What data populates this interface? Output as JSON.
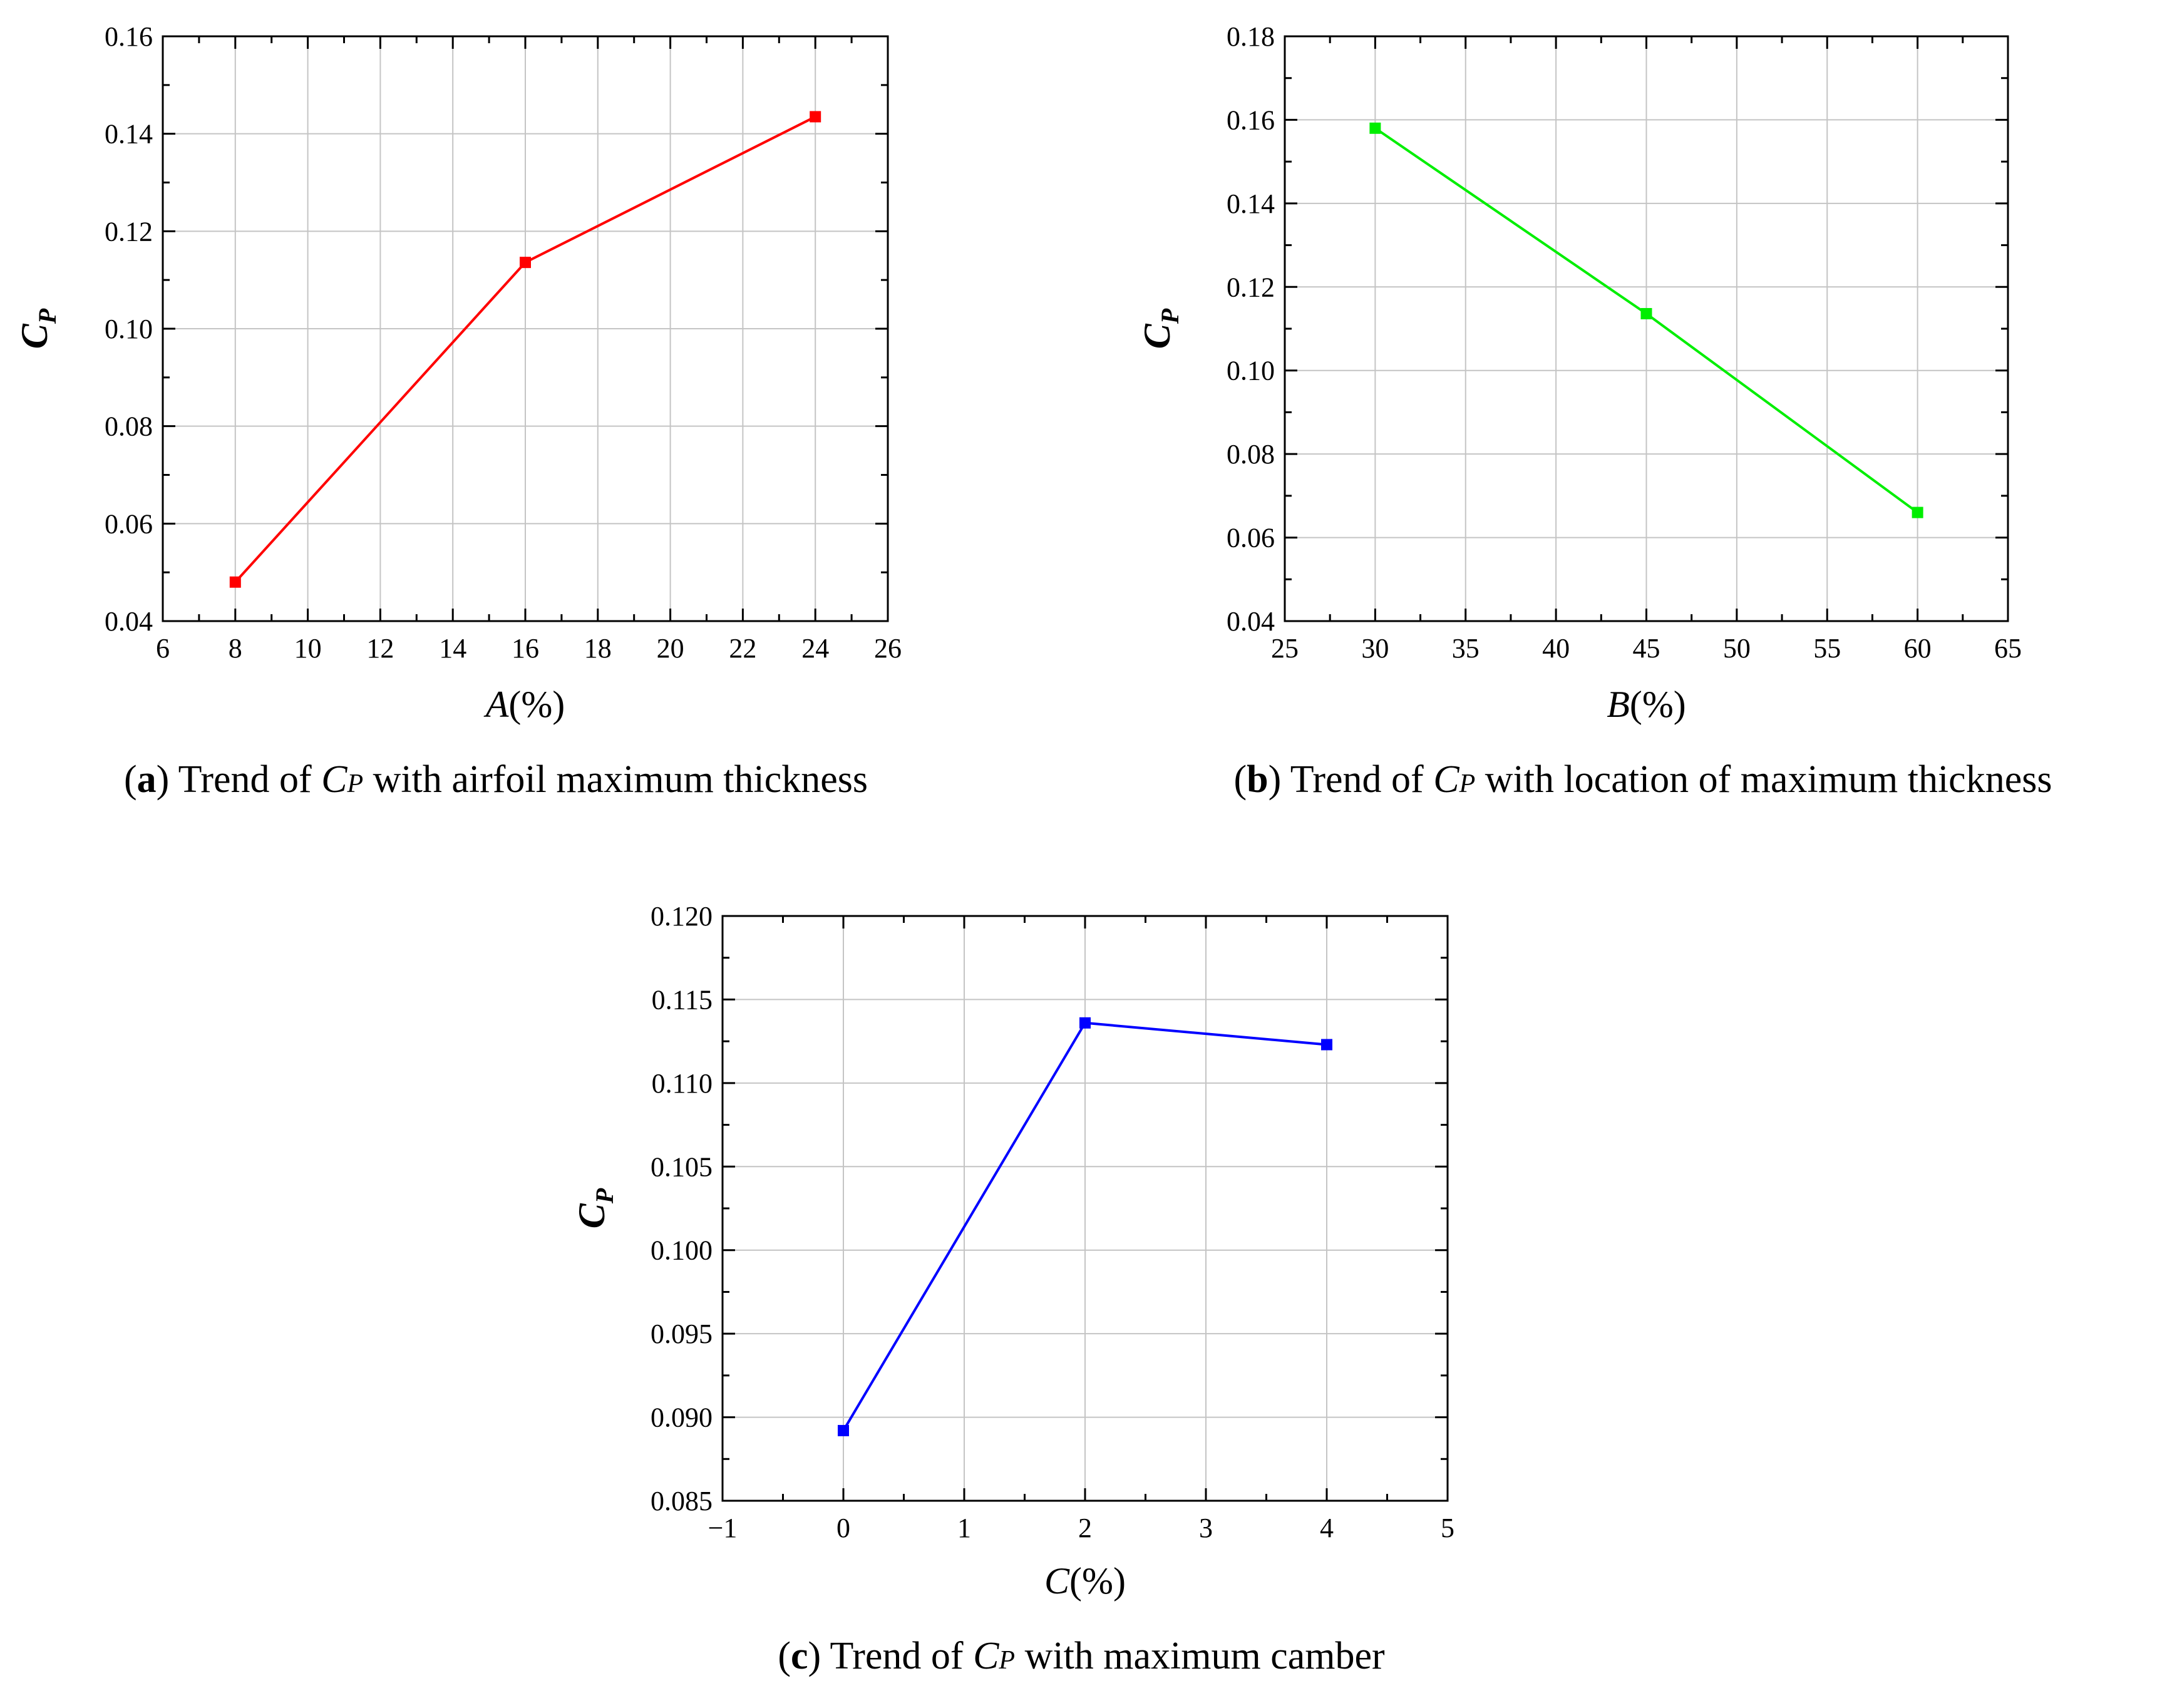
{
  "chart_data": [
    {
      "id": "a",
      "type": "line",
      "x": [
        8,
        16,
        24
      ],
      "series": [
        {
          "values": [
            0.048,
            0.1136,
            0.1435
          ],
          "color": "#ff0000"
        }
      ],
      "xlim": [
        6,
        26
      ],
      "ylim": [
        0.04,
        0.16
      ],
      "xticks": [
        6,
        8,
        10,
        12,
        14,
        16,
        18,
        20,
        22,
        24,
        26
      ],
      "yticks": [
        0.04,
        0.06,
        0.08,
        0.1,
        0.12,
        0.14,
        0.16
      ],
      "ydecimals": 2,
      "xlabel_var": "A",
      "xlabel_unit": "(%)",
      "ylabel_main": "C",
      "ylabel_sub": "P",
      "grid": true,
      "marker": "square",
      "caption": {
        "letter": "a",
        "pre": " Trend of ",
        "var": "C",
        "sub": "P",
        "post": " with airfoil maximum thickness"
      }
    },
    {
      "id": "b",
      "type": "line",
      "x": [
        30,
        45,
        60
      ],
      "series": [
        {
          "values": [
            0.158,
            0.1136,
            0.066
          ],
          "color": "#00ee00"
        }
      ],
      "xlim": [
        25,
        65
      ],
      "ylim": [
        0.04,
        0.18
      ],
      "xticks": [
        25,
        30,
        35,
        40,
        45,
        50,
        55,
        60,
        65
      ],
      "yticks": [
        0.04,
        0.06,
        0.08,
        0.1,
        0.12,
        0.14,
        0.16,
        0.18
      ],
      "ydecimals": 2,
      "xlabel_var": "B",
      "xlabel_unit": "(%)",
      "ylabel_main": "C",
      "ylabel_sub": "P",
      "grid": true,
      "marker": "square",
      "caption": {
        "letter": "b",
        "pre": " Trend of ",
        "var": "C",
        "sub": "P",
        "post": " with location of maximum thickness"
      }
    },
    {
      "id": "c",
      "type": "line",
      "x": [
        0,
        2,
        4
      ],
      "series": [
        {
          "values": [
            0.0892,
            0.1136,
            0.1123
          ],
          "color": "#0000ff"
        }
      ],
      "xlim": [
        -1,
        5
      ],
      "ylim": [
        0.085,
        0.12
      ],
      "xticks": [
        -1,
        0,
        1,
        2,
        3,
        4,
        5
      ],
      "yticks": [
        0.085,
        0.09,
        0.095,
        0.1,
        0.105,
        0.11,
        0.115,
        0.12
      ],
      "ydecimals": 3,
      "xlabel_var": "C",
      "xlabel_unit": "(%)",
      "ylabel_main": "C",
      "ylabel_sub": "P",
      "grid": true,
      "marker": "square",
      "caption": {
        "letter": "c",
        "pre": " Trend of ",
        "var": "C",
        "sub": "P",
        "post": " with maximum camber"
      }
    }
  ]
}
